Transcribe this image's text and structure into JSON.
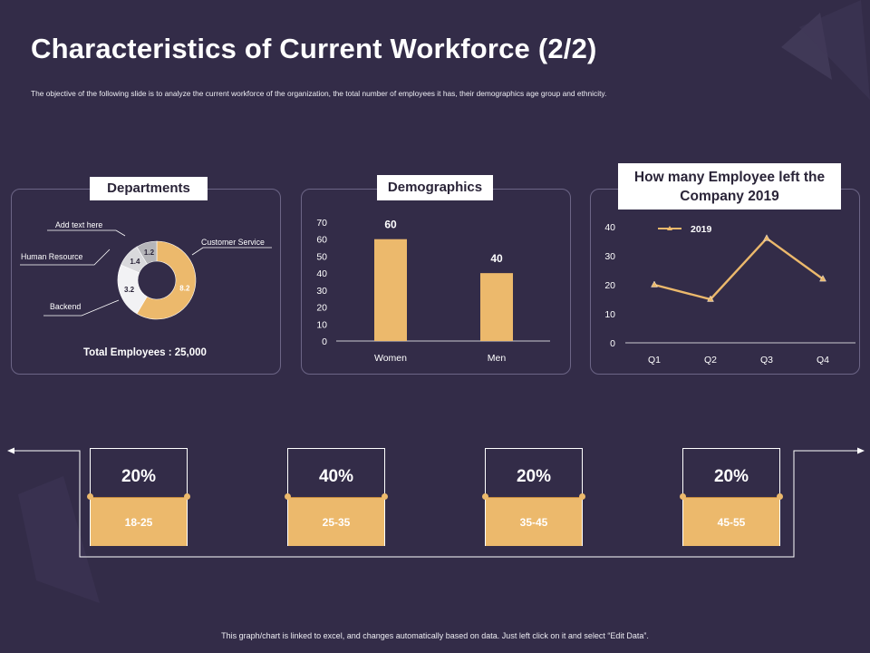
{
  "title": "Characteristics of Current Workforce (2/2)",
  "subtitle": "The objective of the following slide is to analyze the current workforce of the organization, the total number of employees it has, their demographics age group and ethnicity.",
  "colors": {
    "background": "#332c48",
    "accent": "#ecb96c",
    "panel_border": "#6c6586",
    "line": "#ecb96c"
  },
  "departments": {
    "heading": "Departments",
    "total": "Total Employees : 25,000"
  },
  "demographics": {
    "heading": "Demographics"
  },
  "attrition": {
    "heading_line1": "How many Employee left the",
    "heading_line2": "Company  2019"
  },
  "age_groups": [
    {
      "percent": "20%",
      "range": "18-25"
    },
    {
      "percent": "40%",
      "range": "25-35"
    },
    {
      "percent": "20%",
      "range": "35-45"
    },
    {
      "percent": "20%",
      "range": "45-55"
    }
  ],
  "footer": "This graph/chart is linked to excel, and changes automatically based on data. Just left click on it and select “Edit Data”.",
  "chart_data": [
    {
      "type": "pie",
      "title": "Departments",
      "categories": [
        "Customer Service",
        "Backend",
        "Human Resource",
        "Add text here"
      ],
      "values": [
        8.2,
        3.2,
        1.4,
        1.2
      ],
      "value_labels": [
        "8.2",
        "3.2",
        "1.4",
        "1.2"
      ],
      "colors": [
        "#ecb96c",
        "#f2f2f4",
        "#d9d9dc",
        "#b5b5b9"
      ]
    },
    {
      "type": "bar",
      "title": "Demographics",
      "categories": [
        "Women",
        "Men"
      ],
      "values": [
        60,
        40
      ],
      "ylim": [
        0,
        70
      ],
      "yticks": [
        "0",
        "10",
        "20",
        "30",
        "40",
        "50",
        "60",
        "70"
      ],
      "xlabel": "",
      "ylabel": ""
    },
    {
      "type": "line",
      "title": "How many Employee left the Company 2019",
      "categories": [
        "Q1",
        "Q2",
        "Q3",
        "Q4"
      ],
      "series": [
        {
          "name": "2019",
          "values": [
            20,
            15,
            36,
            22
          ]
        }
      ],
      "ylim": [
        0,
        40
      ],
      "yticks": [
        "0",
        "10",
        "20",
        "30",
        "40"
      ],
      "legend": "top-left"
    }
  ]
}
